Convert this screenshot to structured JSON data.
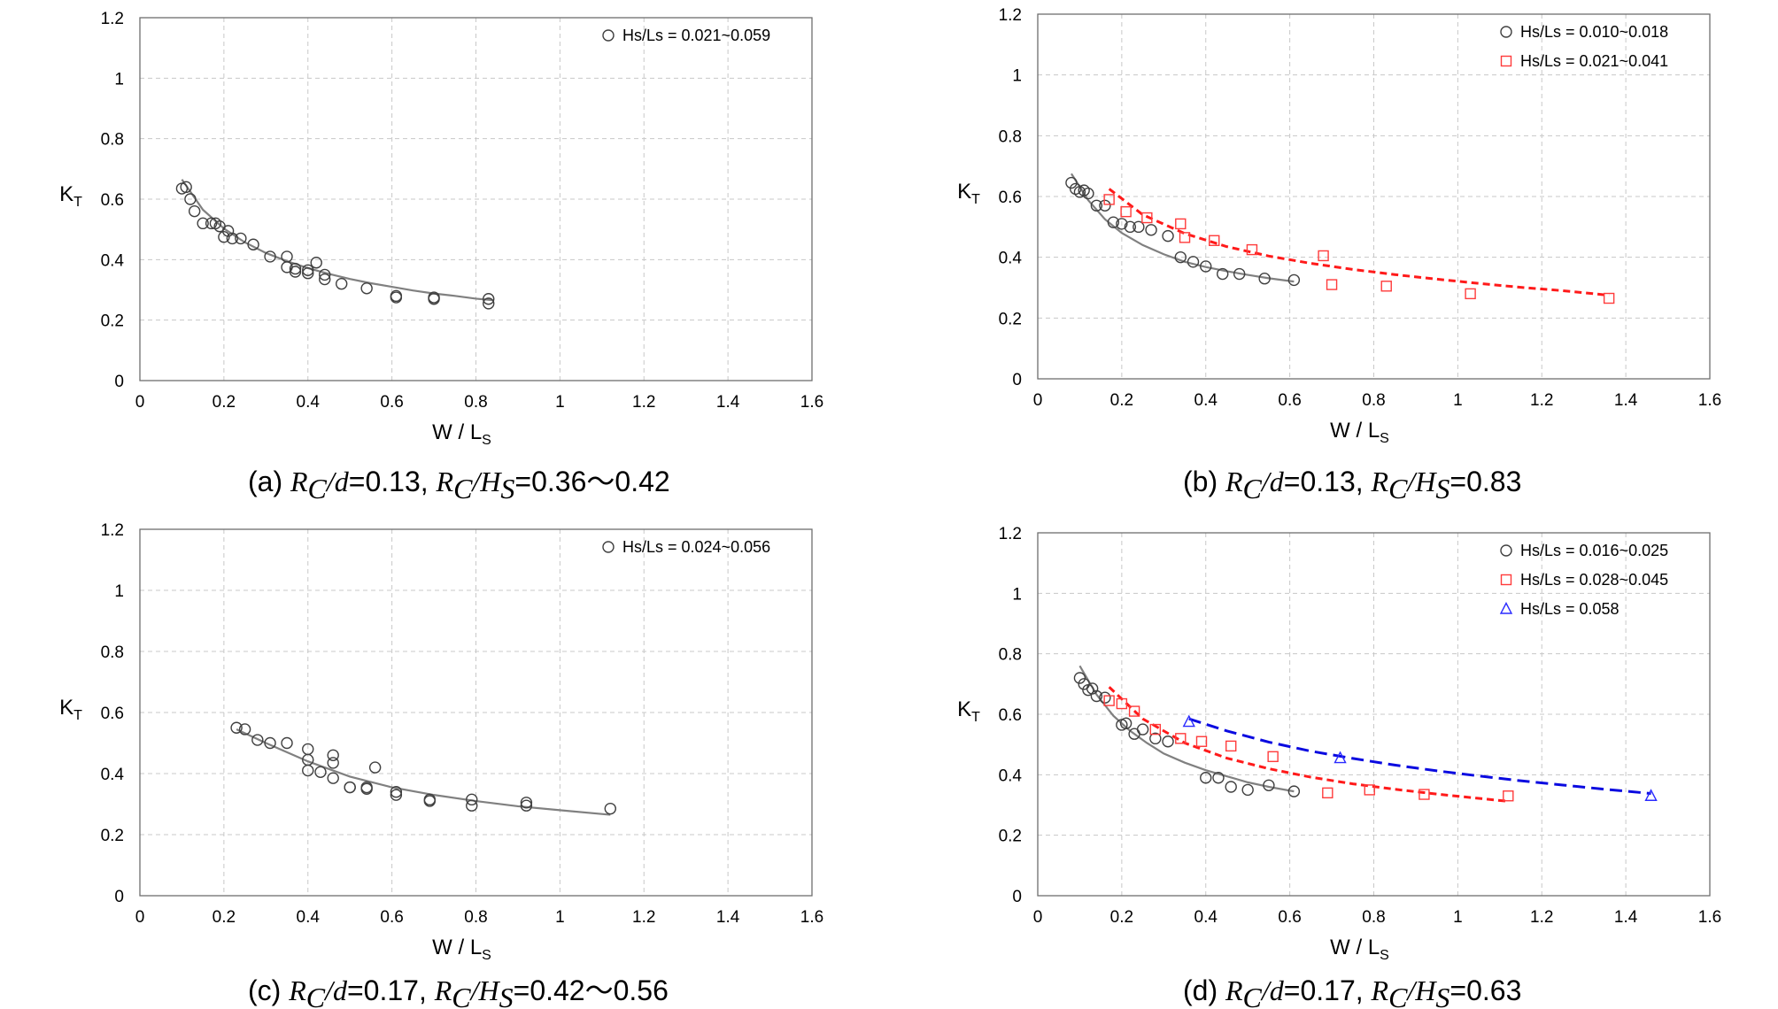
{
  "chart_data": [
    {
      "type": "scatter",
      "panel": "a",
      "caption": {
        "label": "(a)",
        "rc_over_d": "0.13",
        "rc_over_hs": "0.36～0.42"
      },
      "xlabel": "W / L",
      "xlabel_sub": "S",
      "ylabel": "K",
      "ylabel_sub": "T",
      "xlim": [
        0,
        1.6
      ],
      "ylim": [
        0,
        1.2
      ],
      "x_ticks": [
        "0",
        "0.2",
        "0.4",
        "0.6",
        "0.8",
        "1",
        "1.2",
        "1.4",
        "1.6"
      ],
      "y_ticks": [
        "0",
        "0.2",
        "0.4",
        "0.6",
        "0.8",
        "1",
        "1.2"
      ],
      "grid": true,
      "legend_position": "top-right",
      "series": [
        {
          "name": "Hs/Ls = 0.021~0.059",
          "marker": "circle",
          "color": "#404040",
          "x": [
            0.1,
            0.11,
            0.12,
            0.13,
            0.15,
            0.17,
            0.18,
            0.19,
            0.2,
            0.21,
            0.22,
            0.24,
            0.27,
            0.31,
            0.35,
            0.35,
            0.37,
            0.37,
            0.4,
            0.4,
            0.42,
            0.44,
            0.44,
            0.48,
            0.54,
            0.61,
            0.61,
            0.7,
            0.7,
            0.83,
            0.83
          ],
          "y": [
            0.635,
            0.64,
            0.6,
            0.56,
            0.52,
            0.52,
            0.52,
            0.51,
            0.475,
            0.495,
            0.47,
            0.47,
            0.45,
            0.41,
            0.41,
            0.375,
            0.37,
            0.36,
            0.365,
            0.355,
            0.39,
            0.35,
            0.335,
            0.32,
            0.305,
            0.28,
            0.275,
            0.275,
            0.27,
            0.27,
            0.255
          ],
          "fit": {
            "style": "solid",
            "color": "#808080",
            "x": [
              0.1,
              0.15,
              0.2,
              0.25,
              0.3,
              0.35,
              0.4,
              0.45,
              0.5,
              0.55,
              0.6,
              0.65,
              0.7,
              0.75,
              0.8,
              0.84
            ],
            "y": [
              0.665,
              0.565,
              0.503,
              0.457,
              0.422,
              0.395,
              0.372,
              0.353,
              0.336,
              0.322,
              0.31,
              0.298,
              0.288,
              0.28,
              0.271,
              0.266
            ]
          }
        }
      ]
    },
    {
      "type": "scatter",
      "panel": "b",
      "caption": {
        "label": "(b)",
        "rc_over_d": "0.13",
        "rc_over_hs": "0.83"
      },
      "xlabel": "W / L",
      "xlabel_sub": "S",
      "ylabel": "K",
      "ylabel_sub": "T",
      "xlim": [
        0,
        1.6
      ],
      "ylim": [
        0,
        1.2
      ],
      "x_ticks": [
        "0",
        "0.2",
        "0.4",
        "0.6",
        "0.8",
        "1",
        "1.2",
        "1.4",
        "1.6"
      ],
      "y_ticks": [
        "0",
        "0.2",
        "0.4",
        "0.6",
        "0.8",
        "1",
        "1.2"
      ],
      "grid": true,
      "legend_position": "top-right",
      "series": [
        {
          "name": "Hs/Ls = 0.010~0.018",
          "marker": "circle",
          "color": "#404040",
          "x": [
            0.08,
            0.09,
            0.1,
            0.11,
            0.12,
            0.14,
            0.16,
            0.18,
            0.2,
            0.22,
            0.24,
            0.27,
            0.31,
            0.34,
            0.37,
            0.4,
            0.44,
            0.48,
            0.54,
            0.61
          ],
          "y": [
            0.645,
            0.625,
            0.615,
            0.62,
            0.61,
            0.57,
            0.57,
            0.515,
            0.51,
            0.5,
            0.5,
            0.49,
            0.47,
            0.4,
            0.385,
            0.37,
            0.345,
            0.345,
            0.33,
            0.325
          ],
          "fit": {
            "style": "solid",
            "color": "#808080",
            "x": [
              0.08,
              0.12,
              0.16,
              0.2,
              0.25,
              0.3,
              0.35,
              0.4,
              0.45,
              0.5,
              0.55,
              0.61
            ],
            "y": [
              0.675,
              0.588,
              0.525,
              0.48,
              0.44,
              0.41,
              0.385,
              0.368,
              0.354,
              0.342,
              0.331,
              0.32
            ]
          }
        },
        {
          "name": "Hs/Ls = 0.021~0.041",
          "marker": "square",
          "color": "#ff3b3b",
          "x": [
            0.17,
            0.21,
            0.26,
            0.34,
            0.35,
            0.42,
            0.51,
            0.68,
            0.7,
            0.83,
            1.03,
            1.36
          ],
          "y": [
            0.59,
            0.55,
            0.53,
            0.51,
            0.465,
            0.455,
            0.425,
            0.405,
            0.31,
            0.305,
            0.28,
            0.265
          ],
          "fit": {
            "style": "dashed",
            "color": "#ff1a1a",
            "x": [
              0.17,
              0.25,
              0.35,
              0.45,
              0.55,
              0.65,
              0.75,
              0.85,
              0.95,
              1.05,
              1.15,
              1.25,
              1.36
            ],
            "y": [
              0.625,
              0.54,
              0.478,
              0.435,
              0.404,
              0.38,
              0.36,
              0.343,
              0.328,
              0.314,
              0.301,
              0.29,
              0.275
            ]
          }
        }
      ]
    },
    {
      "type": "scatter",
      "panel": "c",
      "caption": {
        "label": "(c)",
        "rc_over_d": "0.17",
        "rc_over_hs": "0.42～0.56"
      },
      "xlabel": "W / L",
      "xlabel_sub": "S",
      "ylabel": "K",
      "ylabel_sub": "T",
      "xlim": [
        0,
        1.6
      ],
      "ylim": [
        0,
        1.2
      ],
      "x_ticks": [
        "0",
        "0.2",
        "0.4",
        "0.6",
        "0.8",
        "1",
        "1.2",
        "1.4",
        "1.6"
      ],
      "y_ticks": [
        "0",
        "0.2",
        "0.4",
        "0.6",
        "0.8",
        "1",
        "1.2"
      ],
      "grid": true,
      "legend_position": "top-right",
      "series": [
        {
          "name": "Hs/Ls = 0.024~0.056",
          "marker": "circle",
          "color": "#404040",
          "x": [
            0.23,
            0.25,
            0.28,
            0.31,
            0.35,
            0.4,
            0.4,
            0.4,
            0.43,
            0.46,
            0.46,
            0.46,
            0.5,
            0.5,
            0.54,
            0.54,
            0.56,
            0.61,
            0.61,
            0.69,
            0.69,
            0.79,
            0.79,
            0.92,
            0.92,
            1.12
          ],
          "y": [
            0.55,
            0.545,
            0.51,
            0.5,
            0.5,
            0.48,
            0.445,
            0.41,
            0.405,
            0.46,
            0.435,
            0.385,
            0.355,
            0.355,
            0.35,
            0.355,
            0.42,
            0.34,
            0.33,
            0.315,
            0.31,
            0.315,
            0.295,
            0.305,
            0.295,
            0.285
          ],
          "fit": {
            "style": "solid",
            "color": "#808080",
            "x": [
              0.23,
              0.3,
              0.4,
              0.5,
              0.6,
              0.7,
              0.8,
              0.9,
              1.0,
              1.12
            ],
            "y": [
              0.545,
              0.5,
              0.44,
              0.39,
              0.355,
              0.33,
              0.31,
              0.293,
              0.28,
              0.265
            ]
          }
        }
      ]
    },
    {
      "type": "scatter",
      "panel": "d",
      "caption": {
        "label": "(d)",
        "rc_over_d": "0.17",
        "rc_over_hs": "0.63"
      },
      "xlabel": "W / L",
      "xlabel_sub": "S",
      "ylabel": "K",
      "ylabel_sub": "T",
      "xlim": [
        0,
        1.6
      ],
      "ylim": [
        0,
        1.2
      ],
      "x_ticks": [
        "0",
        "0.2",
        "0.4",
        "0.6",
        "0.8",
        "1",
        "1.2",
        "1.4",
        "1.6"
      ],
      "y_ticks": [
        "0",
        "0.2",
        "0.4",
        "0.6",
        "0.8",
        "1",
        "1.2"
      ],
      "grid": true,
      "legend_position": "top-right",
      "series": [
        {
          "name": "Hs/Ls = 0.016~0.025",
          "marker": "circle",
          "color": "#404040",
          "x": [
            0.1,
            0.11,
            0.12,
            0.13,
            0.14,
            0.16,
            0.2,
            0.21,
            0.23,
            0.25,
            0.28,
            0.31,
            0.4,
            0.43,
            0.46,
            0.5,
            0.55,
            0.61
          ],
          "y": [
            0.72,
            0.7,
            0.68,
            0.685,
            0.66,
            0.655,
            0.565,
            0.57,
            0.535,
            0.55,
            0.52,
            0.51,
            0.39,
            0.39,
            0.36,
            0.35,
            0.365,
            0.345
          ],
          "fit": {
            "style": "solid",
            "color": "#808080",
            "x": [
              0.1,
              0.14,
              0.18,
              0.22,
              0.26,
              0.3,
              0.35,
              0.4,
              0.45,
              0.5,
              0.55,
              0.61
            ],
            "y": [
              0.76,
              0.665,
              0.595,
              0.545,
              0.505,
              0.47,
              0.44,
              0.415,
              0.395,
              0.375,
              0.36,
              0.345
            ]
          }
        },
        {
          "name": "Hs/Ls = 0.028~0.045",
          "marker": "square",
          "color": "#ff3b3b",
          "x": [
            0.17,
            0.2,
            0.23,
            0.28,
            0.34,
            0.39,
            0.46,
            0.56,
            0.69,
            0.79,
            0.92,
            1.12
          ],
          "y": [
            0.645,
            0.635,
            0.61,
            0.55,
            0.52,
            0.51,
            0.495,
            0.46,
            0.34,
            0.35,
            0.335,
            0.33
          ],
          "fit": {
            "style": "dashed",
            "color": "#ff1a1a",
            "x": [
              0.17,
              0.25,
              0.35,
              0.45,
              0.55,
              0.65,
              0.75,
              0.85,
              0.95,
              1.05,
              1.12
            ],
            "y": [
              0.69,
              0.585,
              0.505,
              0.455,
              0.42,
              0.392,
              0.37,
              0.352,
              0.336,
              0.322,
              0.312
            ]
          }
        },
        {
          "name": "Hs/Ls = 0.058",
          "marker": "triangle",
          "color": "#2a2aff",
          "x": [
            0.36,
            0.72,
            1.46
          ],
          "y": [
            0.575,
            0.455,
            0.33
          ],
          "fit": {
            "style": "dashed",
            "color": "#0a0ae0",
            "x": [
              0.36,
              0.45,
              0.55,
              0.65,
              0.75,
              0.85,
              0.95,
              1.05,
              1.15,
              1.25,
              1.35,
              1.46
            ],
            "y": [
              0.585,
              0.545,
              0.508,
              0.478,
              0.454,
              0.432,
              0.413,
              0.396,
              0.38,
              0.366,
              0.352,
              0.338
            ]
          }
        }
      ]
    }
  ]
}
